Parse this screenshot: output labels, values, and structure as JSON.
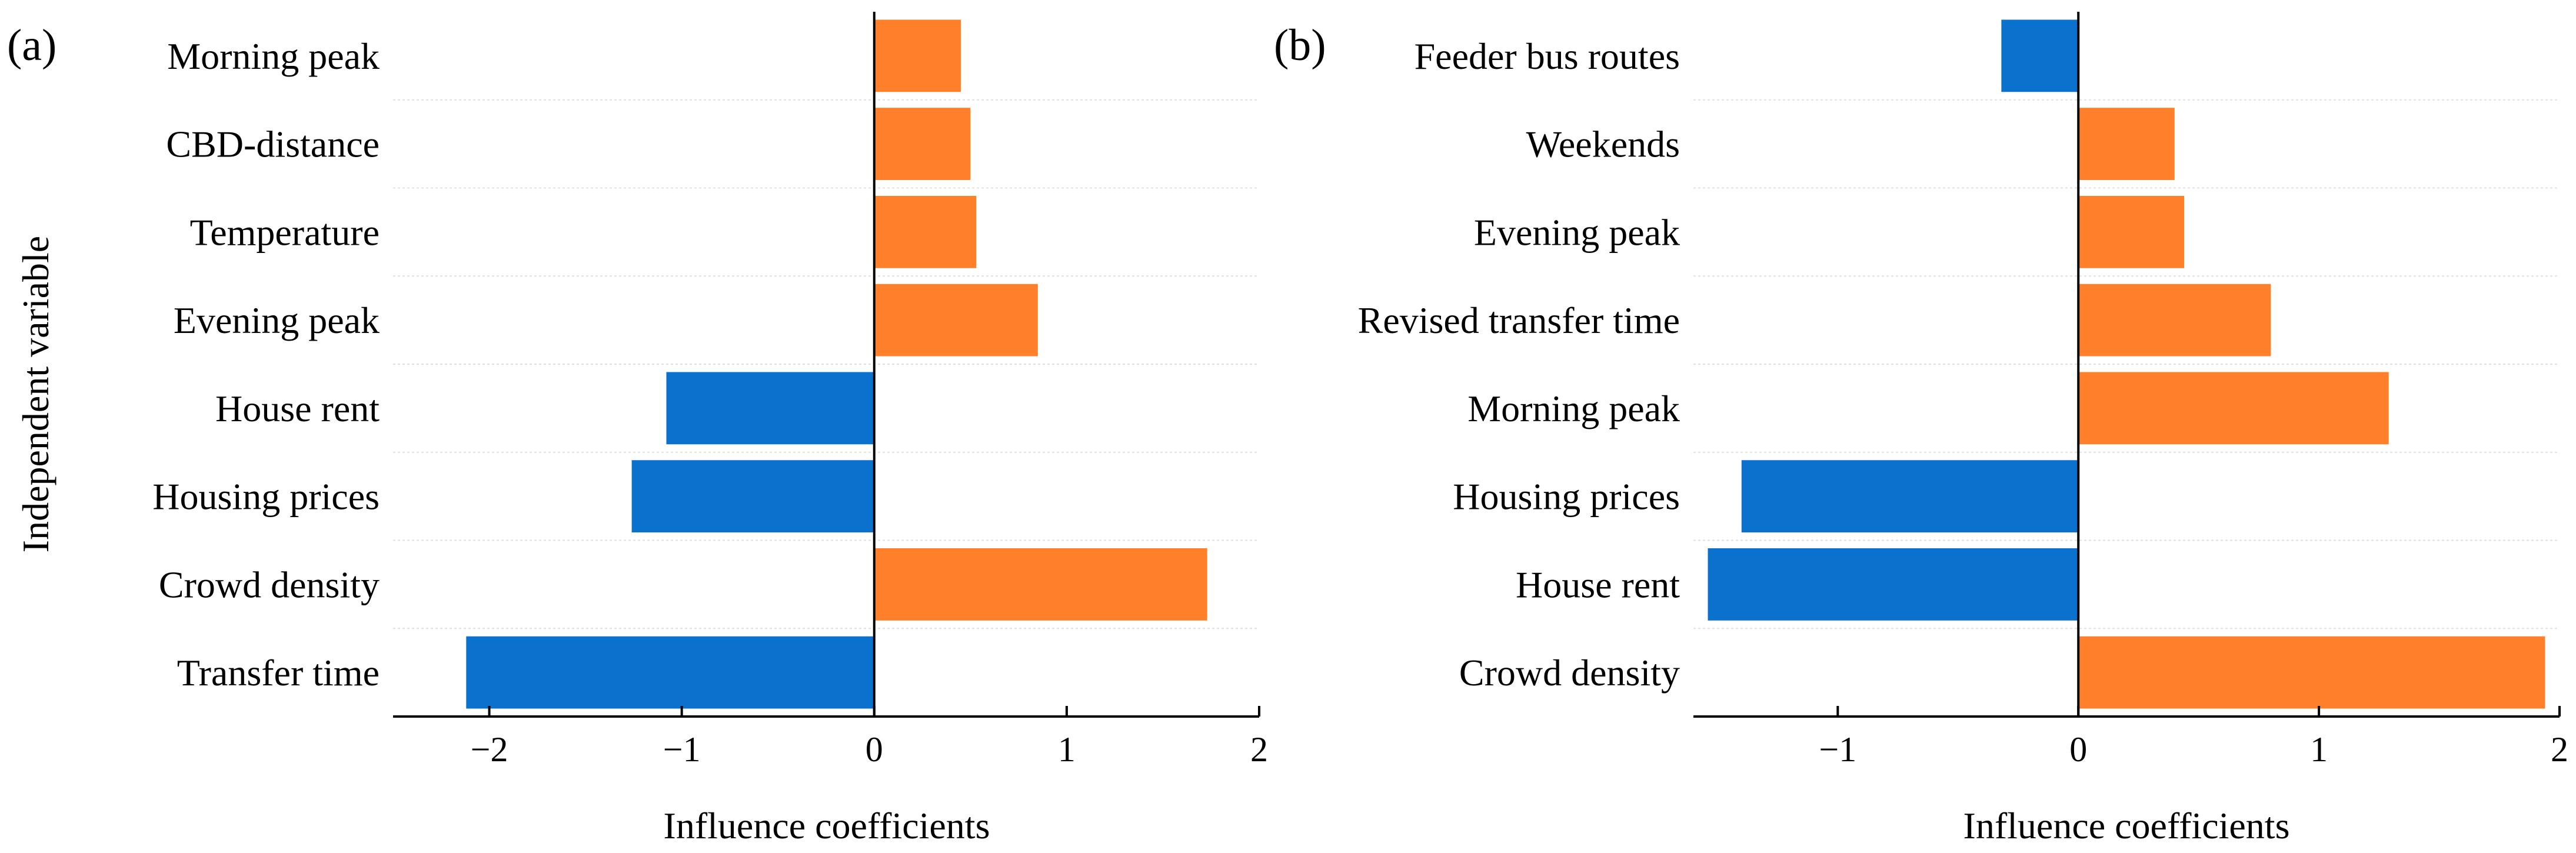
{
  "colors": {
    "positive": "#ff7f2a",
    "negative": "#0a72cc"
  },
  "y_axis_title": "Independent variable",
  "chart_data": [
    {
      "type": "bar",
      "orientation": "horizontal",
      "panel_label": "(a)",
      "xlabel": "Influence coefficients",
      "xlim": [
        -2.5,
        2
      ],
      "xticks": [
        -2,
        -1,
        0,
        1,
        2
      ],
      "xtick_labels": [
        "−2",
        "−1",
        "0",
        "1",
        "2"
      ],
      "categories": [
        "Morning peak",
        "CBD-distance",
        "Temperature",
        "Evening peak",
        "House rent",
        "Housing prices",
        "Crowd density",
        "Transfer time"
      ],
      "values": [
        0.45,
        0.5,
        0.53,
        0.85,
        -1.08,
        -1.26,
        1.73,
        -2.12
      ]
    },
    {
      "type": "bar",
      "orientation": "horizontal",
      "panel_label": "(b)",
      "xlabel": "Influence coefficients",
      "xlim": [
        -1.6,
        2
      ],
      "xticks": [
        -1,
        0,
        1,
        2
      ],
      "xtick_labels": [
        "−1",
        "0",
        "1",
        "2"
      ],
      "categories": [
        "Feeder bus routes",
        "Weekends",
        "Evening peak",
        "Revised transfer time",
        "Morning peak",
        "Housing prices",
        "House rent",
        "Crowd density"
      ],
      "values": [
        -0.32,
        0.4,
        0.44,
        0.8,
        1.29,
        -1.4,
        -1.54,
        1.94
      ]
    }
  ]
}
